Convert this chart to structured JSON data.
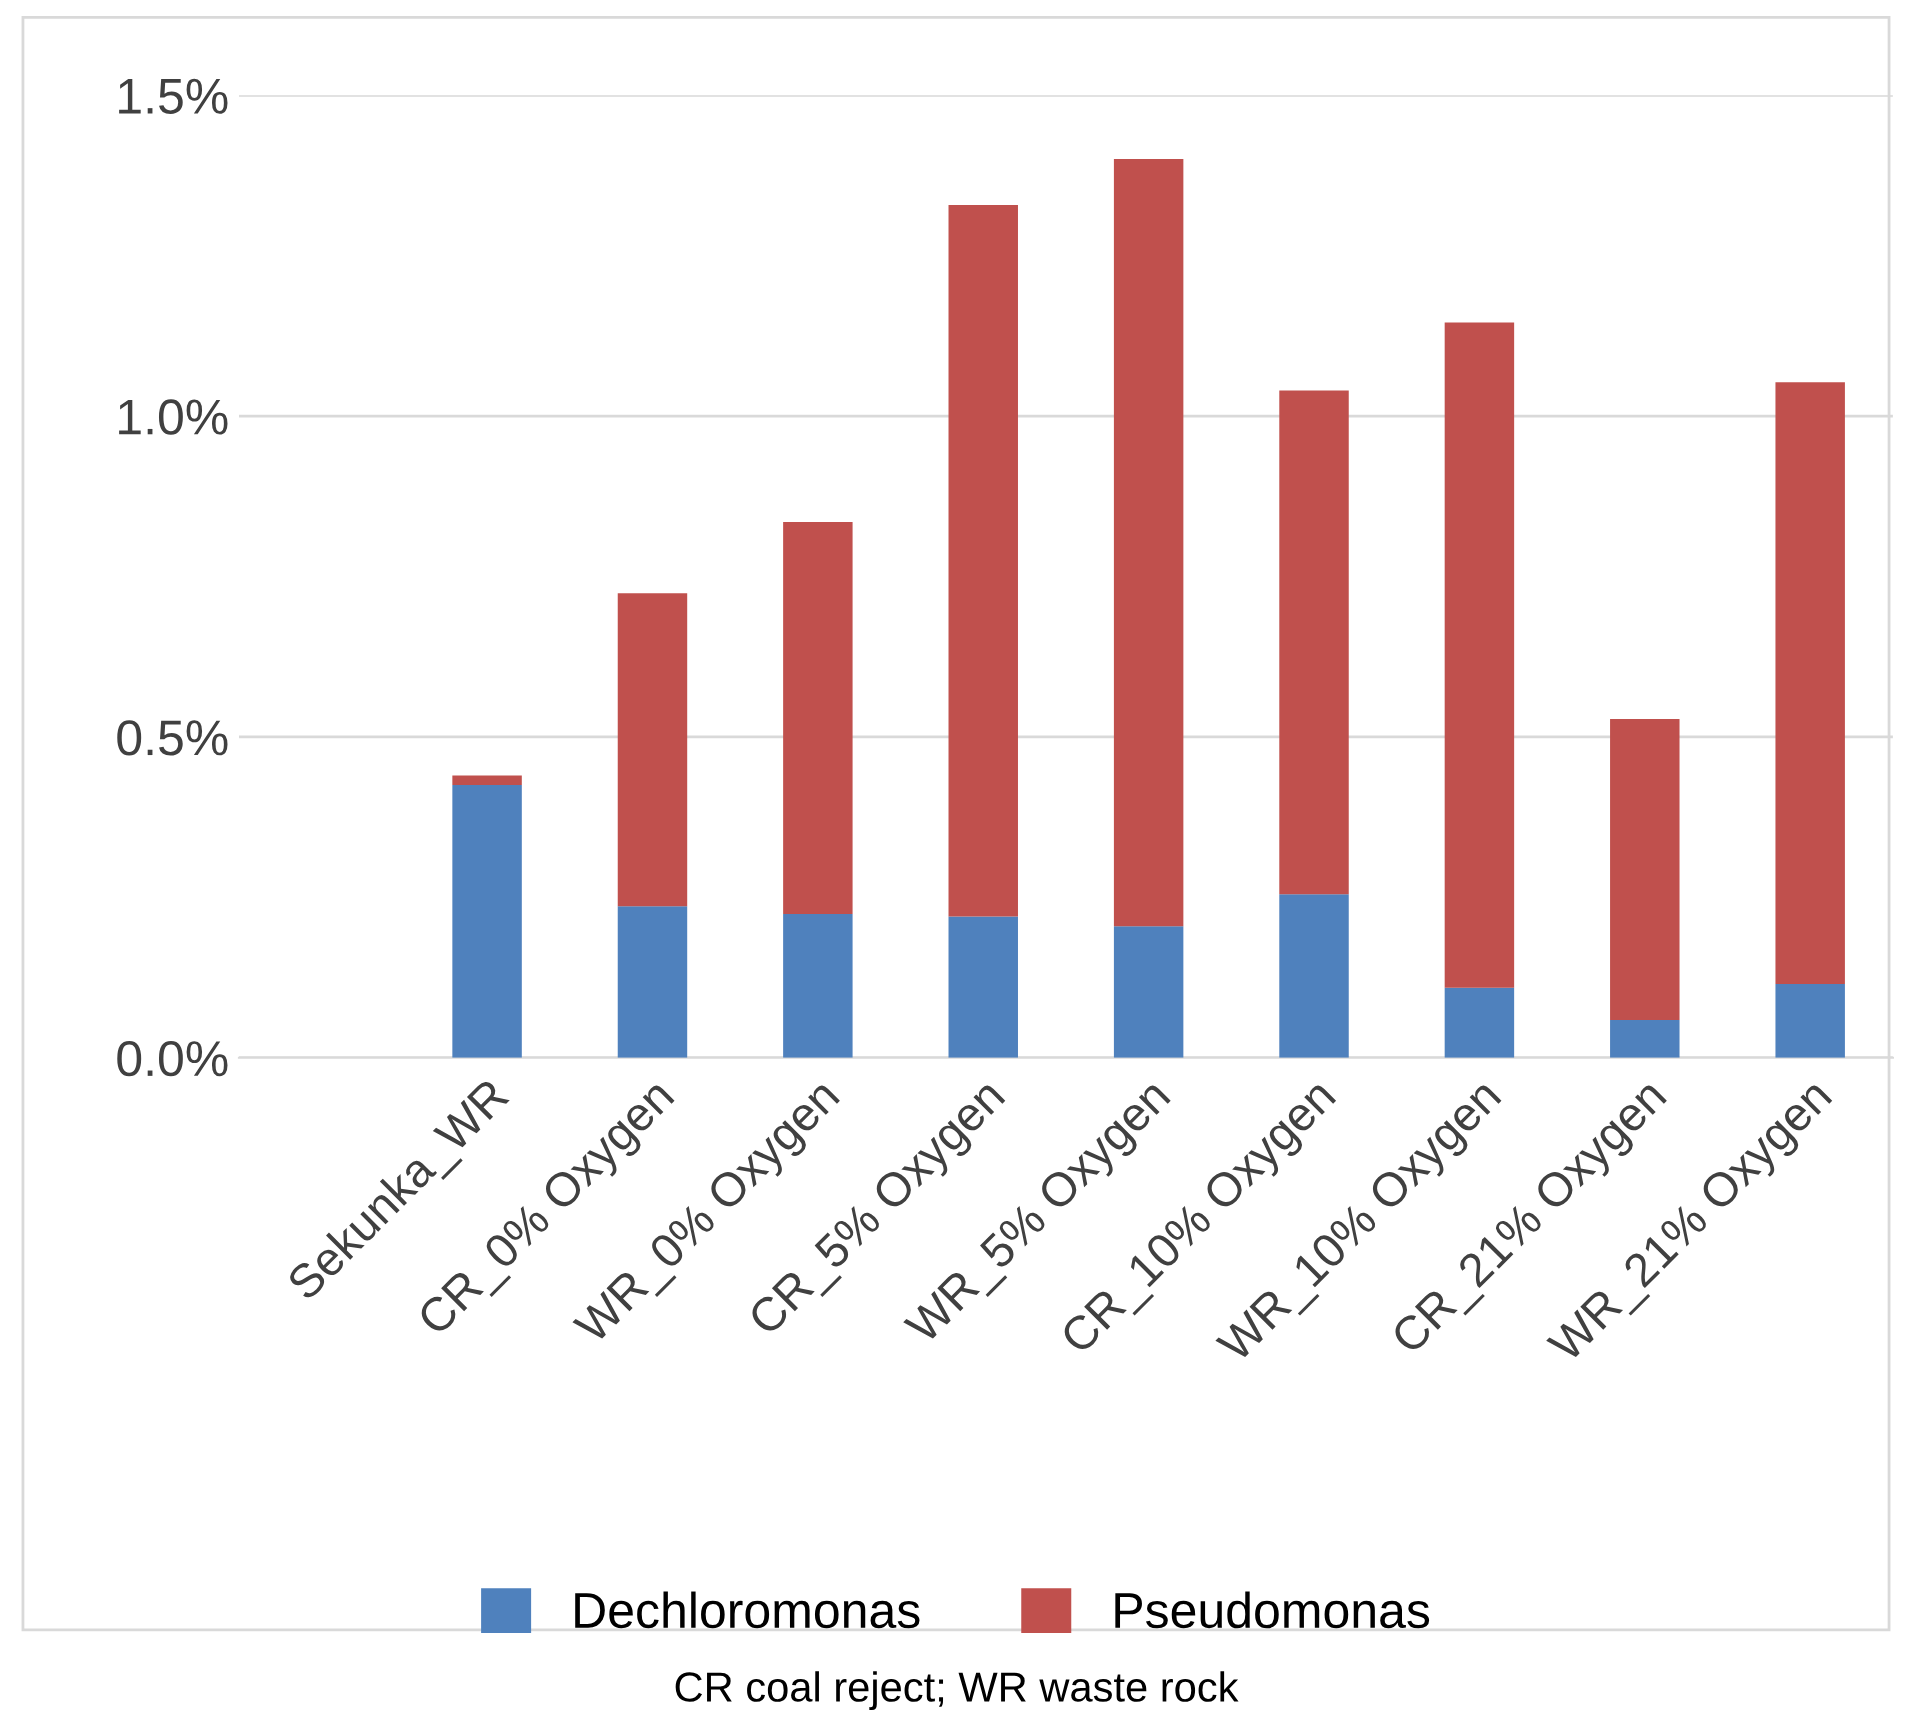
{
  "chart_data": {
    "type": "bar",
    "stacked": true,
    "categories": [
      null,
      "Sekunka_WR",
      "CR_0% Oxygen",
      "WR_0% Oxygen",
      "CR_5% Oxygen",
      "WR_5% Oxygen",
      "CR_10% Oxygen",
      "WR_10% Oxygen",
      "CR_21% Oxygen",
      "WR_21% Oxygen"
    ],
    "series": [
      {
        "name": "Dechloromonas",
        "color": "#4f81bd",
        "values": [
          null,
          0.425,
          0.236,
          0.224,
          0.22,
          0.205,
          0.255,
          0.109,
          0.059,
          0.115
        ]
      },
      {
        "name": "Pseudomonas",
        "color": "#c0504d",
        "values": [
          null,
          0.015,
          0.488,
          0.611,
          1.109,
          1.196,
          0.785,
          1.037,
          0.469,
          0.938
        ]
      }
    ],
    "ylim": [
      0,
      1.5
    ],
    "yticks": [
      {
        "value": 0,
        "label": "0.0%"
      },
      {
        "value": 0.5,
        "label": "0.5%"
      },
      {
        "value": 1.0,
        "label": "1.0%"
      },
      {
        "value": 1.5,
        "label": "1.5%"
      }
    ],
    "grid": "y",
    "legend": "bottom",
    "annotations": [
      "CR coal reject; WR waste rock"
    ]
  }
}
